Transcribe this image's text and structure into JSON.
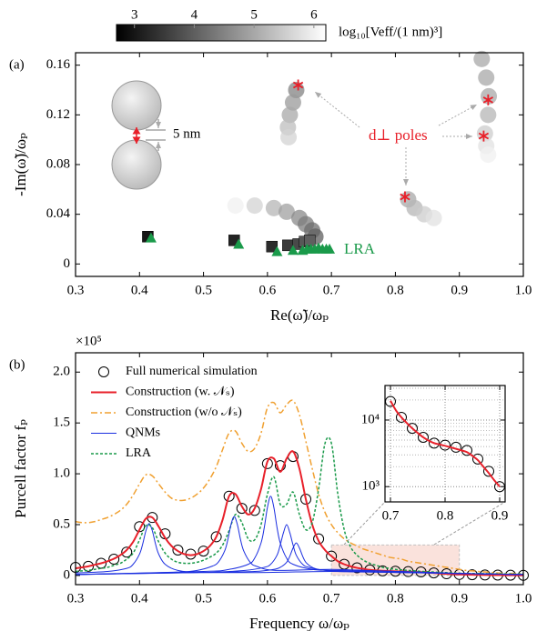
{
  "chart_data": [
    {
      "type": "scatter",
      "label": "(a)",
      "xlabel": "Re(ω̃)/ωₚ",
      "ylabel": "-Im(ω̃)/ωₚ",
      "xlim": [
        0.3,
        1.0
      ],
      "ylim": [
        -0.01,
        0.17
      ],
      "xticks": [
        0.3,
        0.4,
        0.5,
        0.6,
        0.7,
        0.8,
        0.9,
        {
          "value": 1.0,
          "label": "1.0"
        }
      ],
      "yticks": [
        0,
        0.04,
        0.08,
        0.12,
        0.16
      ],
      "colorbar": {
        "label": "log₁₀[Veff/(1 nm)³]",
        "clim": [
          2.7,
          6.2
        ],
        "ticks": [
          3,
          4,
          5,
          6
        ]
      },
      "annotations": [
        "5 nm",
        "d⊥ poles",
        "LRA"
      ],
      "trails": [
        {
          "x": [
            0.55,
            0.58,
            0.61,
            0.63,
            0.65,
            0.66,
            0.67,
            0.675
          ],
          "values": [
            0.047,
            0.047,
            0.045,
            0.042,
            0.037,
            0.032,
            0.027,
            0.022
          ],
          "color_values": [
            6.0,
            5.6,
            5.2,
            4.9,
            4.6,
            4.4,
            4.2,
            4.0
          ]
        },
        {
          "x": [
            0.645,
            0.64,
            0.635,
            0.632,
            0.633
          ],
          "values": [
            0.14,
            0.13,
            0.12,
            0.11,
            0.102
          ],
          "color_values": [
            4.5,
            4.8,
            5.0,
            5.3,
            5.6
          ]
        },
        {
          "x": [
            0.935,
            0.942,
            0.946,
            0.945,
            0.94,
            0.942,
            0.945
          ],
          "values": [
            0.165,
            0.15,
            0.135,
            0.12,
            0.105,
            0.095,
            0.088
          ],
          "color_values": [
            5.0,
            5.0,
            5.0,
            5.2,
            5.5,
            5.8,
            6.0
          ]
        },
        {
          "x": [
            0.82,
            0.83,
            0.845,
            0.86
          ],
          "values": [
            0.052,
            0.045,
            0.04,
            0.037
          ],
          "color_values": [
            5.0,
            5.2,
            5.5,
            5.8
          ]
        }
      ],
      "series": [
        {
          "marker": "square",
          "x": [
            0.413,
            0.548,
            0.607,
            0.632,
            0.648,
            0.658,
            0.666
          ],
          "values": [
            0.022,
            0.019,
            0.014,
            0.015,
            0.016,
            0.018,
            0.019
          ],
          "color_values": [
            3.0,
            3.2,
            3.3,
            3.5,
            3.7,
            3.9,
            4.0
          ]
        },
        {
          "marker": "triangle",
          "color": "#1a9a4a",
          "x": [
            0.418,
            0.555,
            0.615,
            0.64,
            0.655,
            0.662,
            0.668,
            0.674,
            0.68,
            0.686,
            0.692,
            0.697
          ],
          "values": [
            0.021,
            0.016,
            0.01,
            0.011,
            0.011,
            0.012,
            0.012,
            0.012,
            0.013,
            0.012,
            0.012,
            0.012
          ]
        },
        {
          "marker": "asterisk",
          "color": "#e8202a",
          "x": [
            0.648,
            0.945,
            0.938,
            0.815
          ],
          "values": [
            0.144,
            0.132,
            0.103,
            0.054
          ]
        }
      ]
    },
    {
      "type": "line",
      "label": "(b)",
      "multiplier": "×10⁵",
      "xlabel": "Frequency  ω/ωₚ",
      "ylabel": "Purcell factor  fₚ",
      "xlim": [
        0.3,
        1.0
      ],
      "ylim": [
        -0.09,
        2.19
      ],
      "xticks": [
        0.3,
        0.4,
        0.5,
        0.6,
        0.7,
        0.8,
        0.9,
        {
          "value": 1.0,
          "label": "1.0"
        }
      ],
      "yticks": [
        0,
        0.5,
        {
          "value": 1,
          "label": "1.0"
        },
        1.5,
        {
          "value": 2,
          "label": "2.0"
        }
      ],
      "highlight": {
        "xlim": [
          0.7,
          0.9
        ],
        "ylim": [
          0,
          0.3
        ]
      },
      "x": [
        0.3,
        0.31,
        0.32,
        0.33,
        0.34,
        0.35,
        0.36,
        0.37,
        0.38,
        0.39,
        0.4,
        0.41,
        0.42,
        0.43,
        0.44,
        0.45,
        0.46,
        0.47,
        0.48,
        0.49,
        0.5,
        0.51,
        0.52,
        0.53,
        0.54,
        0.55,
        0.56,
        0.57,
        0.58,
        0.59,
        0.6,
        0.61,
        0.62,
        0.63,
        0.64,
        0.65,
        0.66,
        0.67,
        0.68,
        0.69,
        0.7,
        0.71,
        0.72,
        0.73,
        0.74,
        0.75,
        0.76,
        0.77,
        0.78,
        0.79,
        0.8,
        0.81,
        0.82,
        0.83,
        0.84,
        0.85,
        0.86,
        0.87,
        0.88,
        0.89,
        0.9,
        0.91,
        0.92,
        0.93,
        0.94,
        0.95,
        0.96,
        0.97,
        0.98,
        0.99,
        1.0
      ],
      "series": [
        {
          "name": "Full numerical simulation",
          "marker": "circle",
          "color": "#000000",
          "x": [
            0.3,
            0.32,
            0.34,
            0.36,
            0.38,
            0.4,
            0.42,
            0.44,
            0.46,
            0.48,
            0.5,
            0.52,
            0.54,
            0.56,
            0.58,
            0.6,
            0.62,
            0.64,
            0.66,
            0.68,
            0.7,
            0.72,
            0.74,
            0.76,
            0.78,
            0.8,
            0.82,
            0.84,
            0.86,
            0.88,
            0.9,
            0.92,
            0.94,
            0.96,
            0.98,
            1.0
          ],
          "values": [
            0.08,
            0.09,
            0.12,
            0.16,
            0.23,
            0.48,
            0.57,
            0.41,
            0.25,
            0.21,
            0.24,
            0.38,
            0.78,
            0.66,
            0.64,
            1.1,
            1.08,
            1.17,
            0.75,
            0.36,
            0.19,
            0.11,
            0.075,
            0.055,
            0.045,
            0.042,
            0.038,
            0.035,
            0.025,
            0.017,
            0.01,
            0.007,
            0.005,
            0.004,
            0.003,
            0.002
          ]
        },
        {
          "name": "Construction (w. 𝒩ₛ)",
          "color": "#e8202a",
          "width": 2,
          "values": [
            0.07,
            0.08,
            0.09,
            0.105,
            0.12,
            0.14,
            0.165,
            0.2,
            0.25,
            0.33,
            0.45,
            0.56,
            0.57,
            0.48,
            0.37,
            0.29,
            0.24,
            0.21,
            0.2,
            0.21,
            0.24,
            0.29,
            0.38,
            0.55,
            0.78,
            0.8,
            0.68,
            0.6,
            0.66,
            0.85,
            1.12,
            1.15,
            1.02,
            1.15,
            1.22,
            1.05,
            0.75,
            0.5,
            0.34,
            0.25,
            0.19,
            0.14,
            0.11,
            0.09,
            0.075,
            0.065,
            0.055,
            0.05,
            0.046,
            0.043,
            0.041,
            0.039,
            0.037,
            0.035,
            0.033,
            0.029,
            0.025,
            0.02,
            0.016,
            0.012,
            0.01,
            0.008,
            0.007,
            0.006,
            0.005,
            0.004,
            0.004,
            0.003,
            0.003,
            0.002,
            0.002
          ]
        },
        {
          "name": "Construction (w/o 𝒩ₛ)",
          "color": "#f0a030",
          "dash": "dashdot",
          "width": 1.5,
          "values": [
            0.53,
            0.52,
            0.52,
            0.53,
            0.55,
            0.57,
            0.6,
            0.64,
            0.7,
            0.79,
            0.9,
            0.99,
            0.98,
            0.9,
            0.82,
            0.76,
            0.74,
            0.74,
            0.76,
            0.8,
            0.86,
            0.95,
            1.07,
            1.24,
            1.4,
            1.42,
            1.3,
            1.22,
            1.25,
            1.4,
            1.65,
            1.7,
            1.6,
            1.68,
            1.72,
            1.58,
            1.32,
            1.05,
            0.8,
            0.62,
            0.5,
            0.42,
            0.36,
            0.32,
            0.29,
            0.26,
            0.24,
            0.22,
            0.2,
            0.18,
            0.17,
            0.16,
            0.14,
            0.13,
            0.12,
            0.11,
            0.1,
            0.09,
            0.08,
            0.07,
            0.06,
            0.05,
            0.045,
            0.04,
            0.035,
            0.03,
            0.025,
            0.02,
            0.02,
            0.02,
            0.015
          ]
        },
        {
          "name": "QNMs",
          "color": "#1a2ee0",
          "width": 1,
          "x": [
            0.3,
            0.35,
            0.38,
            0.39,
            0.4,
            0.405,
            0.41,
            0.415,
            0.42,
            0.425,
            0.43,
            0.44,
            0.46,
            0.5,
            0.6,
            0.7,
            0.8,
            0.9,
            1.0
          ],
          "values": [
            0.025,
            0.04,
            0.07,
            0.11,
            0.21,
            0.31,
            0.44,
            0.51,
            0.44,
            0.31,
            0.21,
            0.11,
            0.05,
            0.03,
            0.03,
            0.04,
            0.03,
            0.02,
            0.01
          ]
        },
        {
          "name": "LRA",
          "color": "#1a9a4a",
          "dash": "dot",
          "width": 1.5,
          "values": [
            0.04,
            0.045,
            0.05,
            0.06,
            0.07,
            0.08,
            0.1,
            0.12,
            0.16,
            0.22,
            0.35,
            0.49,
            0.47,
            0.33,
            0.22,
            0.16,
            0.13,
            0.12,
            0.12,
            0.13,
            0.15,
            0.18,
            0.22,
            0.3,
            0.44,
            0.6,
            0.52,
            0.36,
            0.35,
            0.5,
            0.8,
            0.97,
            0.7,
            0.7,
            0.82,
            0.6,
            0.45,
            0.52,
            0.85,
            1.3,
            1.3,
            0.8,
            0.45,
            0.28,
            0.2,
            0.15,
            0.12,
            0.1,
            0.08,
            0.07,
            0.06,
            0.055,
            0.05,
            0.045,
            0.04,
            0.037,
            0.034,
            0.03,
            0.028,
            0.025,
            0.022,
            0.02,
            0.02,
            0.019,
            0.018,
            0.017,
            0.016,
            0.016,
            0.015,
            0.015,
            0.015
          ]
        },
        {
          "color": "#1a2ee0",
          "width": 1,
          "x": [
            0.3,
            0.45,
            0.49,
            0.513,
            0.523,
            0.533,
            0.538,
            0.543,
            0.548,
            0.553,
            0.558,
            0.563,
            0.573,
            0.583,
            0.613,
            0.7,
            0.8,
            0.9,
            1.0
          ],
          "values": [
            0.01,
            0.03,
            0.05,
            0.09,
            0.13,
            0.24,
            0.35,
            0.5,
            0.58,
            0.5,
            0.35,
            0.24,
            0.13,
            0.09,
            0.05,
            0.06,
            0.04,
            0.02,
            0.01
          ]
        },
        {
          "color": "#1a2ee0",
          "width": 1,
          "x": [
            0.3,
            0.5,
            0.54,
            0.57,
            0.58,
            0.59,
            0.595,
            0.6,
            0.605,
            0.61,
            0.615,
            0.62,
            0.63,
            0.64,
            0.67,
            0.7,
            0.8,
            0.9,
            1.0
          ],
          "values": [
            0.01,
            0.04,
            0.06,
            0.11,
            0.17,
            0.32,
            0.47,
            0.67,
            0.78,
            0.67,
            0.47,
            0.32,
            0.17,
            0.11,
            0.06,
            0.05,
            0.04,
            0.02,
            0.01
          ]
        },
        {
          "color": "#1a2ee0",
          "width": 1,
          "x": [
            0.3,
            0.5,
            0.565,
            0.595,
            0.605,
            0.615,
            0.62,
            0.625,
            0.63,
            0.635,
            0.64,
            0.645,
            0.655,
            0.665,
            0.695,
            0.8,
            0.9,
            1.0
          ],
          "values": [
            0.01,
            0.03,
            0.05,
            0.08,
            0.11,
            0.2,
            0.3,
            0.42,
            0.5,
            0.42,
            0.3,
            0.2,
            0.11,
            0.08,
            0.05,
            0.04,
            0.02,
            0.01
          ]
        },
        {
          "color": "#1a2ee0",
          "width": 1,
          "x": [
            0.3,
            0.5,
            0.58,
            0.61,
            0.62,
            0.63,
            0.635,
            0.64,
            0.645,
            0.65,
            0.655,
            0.66,
            0.67,
            0.68,
            0.71,
            0.8,
            0.9,
            1.0
          ],
          "values": [
            0.01,
            0.03,
            0.04,
            0.06,
            0.08,
            0.13,
            0.19,
            0.27,
            0.32,
            0.27,
            0.19,
            0.13,
            0.08,
            0.06,
            0.04,
            0.03,
            0.02,
            0.01
          ]
        }
      ]
    },
    {
      "type": "line",
      "yscale": "log",
      "grid": true,
      "xlim": [
        0.69,
        0.91
      ],
      "ylim": [
        590,
        33000
      ],
      "xticks": [
        0.7,
        0.8,
        0.9
      ],
      "yticks": [
        {
          "value": 1000,
          "label": "10³"
        },
        {
          "value": 10000,
          "label": "10⁴"
        }
      ],
      "yminorticks": [
        2000,
        3000,
        4000,
        5000,
        6000,
        7000,
        8000,
        9000,
        20000,
        30000
      ],
      "series": [
        {
          "marker": "circle",
          "color": "#000000",
          "x": [
            0.7,
            0.72,
            0.74,
            0.76,
            0.78,
            0.8,
            0.82,
            0.84,
            0.86,
            0.88,
            0.9
          ],
          "values": [
            19000,
            11000,
            7500,
            5500,
            4500,
            4200,
            3900,
            3500,
            2600,
            1700,
            1000
          ]
        },
        {
          "color": "#e8202a",
          "width": 2,
          "x": [
            0.7,
            0.71,
            0.72,
            0.73,
            0.74,
            0.75,
            0.76,
            0.77,
            0.78,
            0.79,
            0.8,
            0.81,
            0.82,
            0.83,
            0.84,
            0.85,
            0.86,
            0.87,
            0.88,
            0.89,
            0.9
          ],
          "values": [
            19500,
            14000,
            11000,
            9000,
            7500,
            6400,
            5500,
            4900,
            4500,
            4300,
            4100,
            3900,
            3700,
            3500,
            3300,
            2900,
            2500,
            2000,
            1600,
            1250,
            1000
          ]
        }
      ]
    }
  ]
}
